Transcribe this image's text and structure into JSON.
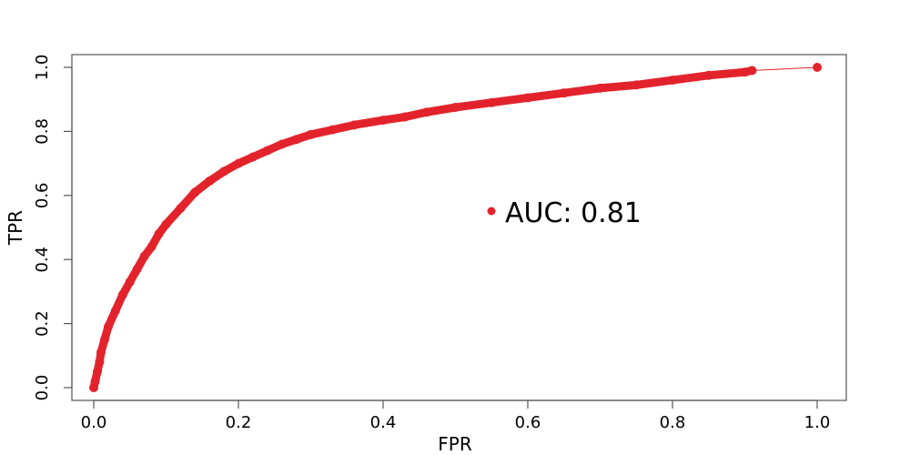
{
  "chart_data": {
    "type": "line",
    "title": "",
    "xlabel": "FPR",
    "ylabel": "TPR",
    "xlim": [
      0,
      1
    ],
    "ylim": [
      0,
      1
    ],
    "x_ticks": [
      "0.0",
      "0.2",
      "0.4",
      "0.6",
      "0.8",
      "1.0"
    ],
    "y_ticks": [
      "0.0",
      "0.2",
      "0.4",
      "0.6",
      "0.8",
      "1.0"
    ],
    "grid": false,
    "legend": {
      "label": "AUC: 0.81",
      "position": "center-right"
    },
    "series": [
      {
        "color": "#e3232c",
        "marker": "circle",
        "x": [
          0.0,
          0.002,
          0.005,
          0.008,
          0.01,
          0.015,
          0.02,
          0.03,
          0.04,
          0.05,
          0.06,
          0.07,
          0.08,
          0.09,
          0.1,
          0.12,
          0.14,
          0.16,
          0.18,
          0.2,
          0.22,
          0.24,
          0.26,
          0.28,
          0.3,
          0.33,
          0.36,
          0.4,
          0.43,
          0.46,
          0.5,
          0.55,
          0.6,
          0.65,
          0.7,
          0.75,
          0.8,
          0.85,
          0.9,
          0.91
        ],
        "y": [
          0.0,
          0.02,
          0.05,
          0.08,
          0.11,
          0.15,
          0.19,
          0.24,
          0.29,
          0.33,
          0.37,
          0.41,
          0.44,
          0.48,
          0.51,
          0.56,
          0.61,
          0.645,
          0.675,
          0.7,
          0.72,
          0.74,
          0.76,
          0.775,
          0.79,
          0.805,
          0.82,
          0.835,
          0.845,
          0.86,
          0.875,
          0.89,
          0.905,
          0.92,
          0.935,
          0.945,
          0.96,
          0.975,
          0.985,
          0.99
        ]
      },
      {
        "color": "#e3232c",
        "marker": "line",
        "x": [
          0.91,
          1.0
        ],
        "y": [
          0.99,
          1.0
        ]
      }
    ]
  },
  "colors": {
    "curve": "#e3232c",
    "axis": "#555555",
    "text": "#000000"
  }
}
